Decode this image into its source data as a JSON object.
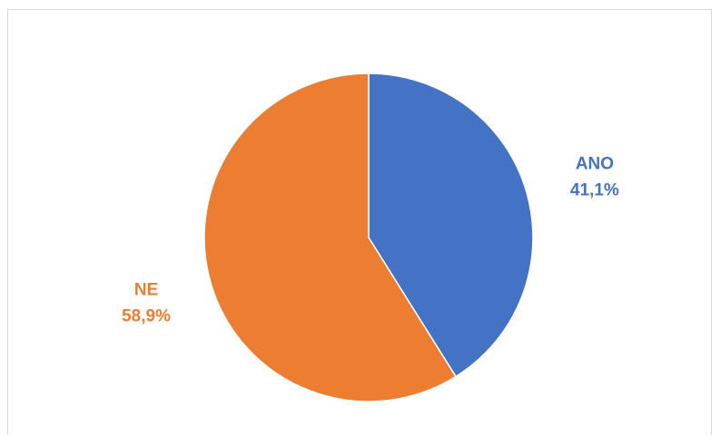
{
  "chart_data": {
    "type": "pie",
    "title": "",
    "categories": [
      "ANO",
      "NE"
    ],
    "values": [
      41.1,
      58.9
    ],
    "value_labels": [
      "41,1%",
      "58,9%"
    ],
    "colors": [
      "#4472C4",
      "#ED7D31"
    ],
    "start_angle_deg": 0,
    "direction": "clockwise",
    "legend": "none",
    "data_labels": "outside"
  }
}
